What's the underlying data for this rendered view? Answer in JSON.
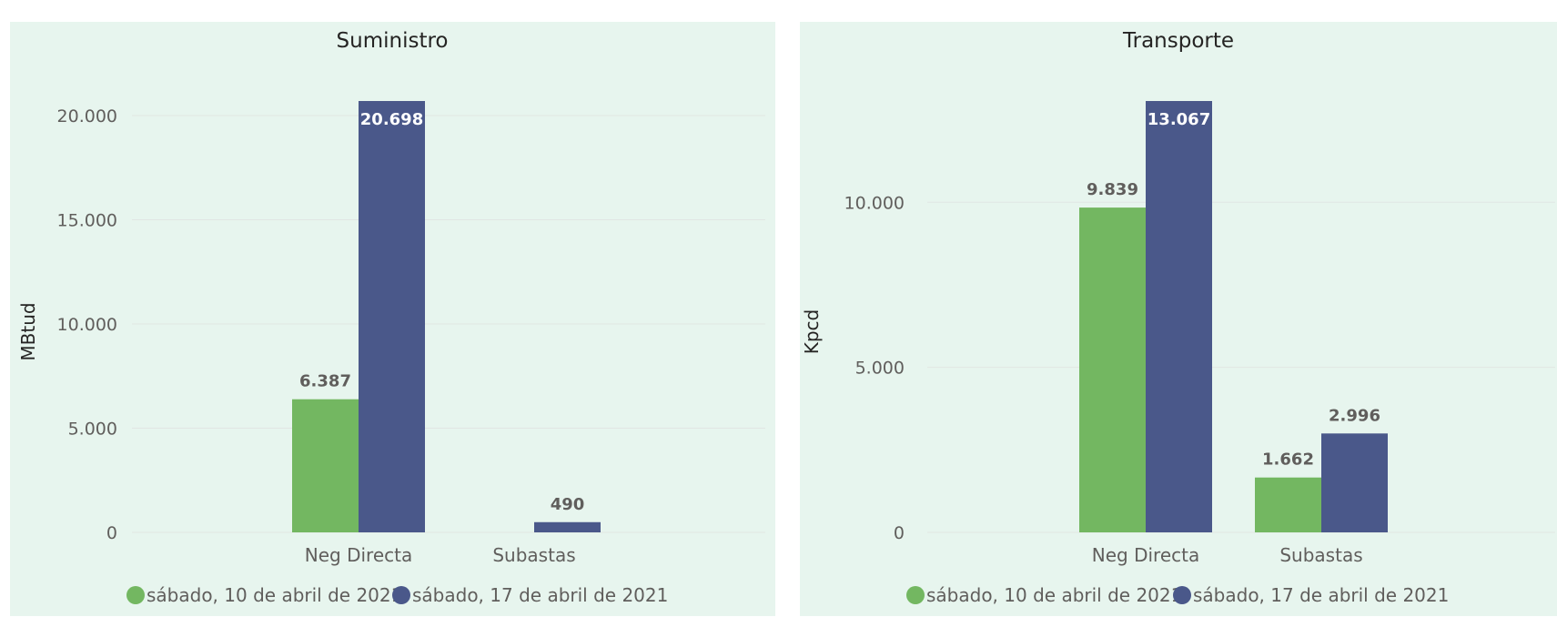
{
  "colors": {
    "series_1": "#73b761",
    "series_2": "#4a588a",
    "panel_background": "#e7f5ee"
  },
  "legend": {
    "items": [
      "sábado, 10 de abril de 2021",
      "sábado, 17 de abril de 2021"
    ]
  },
  "chart_data": [
    {
      "type": "bar",
      "title": "Suministro",
      "ylabel": "MBtud",
      "xlabel": "",
      "categories": [
        "Neg Directa",
        "Subastas"
      ],
      "series": [
        {
          "name": "sábado, 10 de abril de 2021",
          "values": [
            6387,
            null
          ],
          "labels": [
            "6.387",
            ""
          ]
        },
        {
          "name": "sábado, 17 de abril de 2021",
          "values": [
            20698,
            490
          ],
          "labels": [
            "20.698",
            "490"
          ]
        }
      ],
      "ylim": [
        0,
        20698
      ],
      "yticks": [
        0,
        5000,
        10000,
        15000,
        20000
      ],
      "ytick_labels": [
        "0",
        "5.000",
        "10.000",
        "15.000",
        "20.000"
      ],
      "grid": true,
      "legend_position": "bottom"
    },
    {
      "type": "bar",
      "title": "Transporte",
      "ylabel": "Kpcd",
      "xlabel": "",
      "categories": [
        "Neg Directa",
        "Subastas"
      ],
      "series": [
        {
          "name": "sábado, 10 de abril de 2021",
          "values": [
            9839,
            1662
          ],
          "labels": [
            "9.839",
            "1.662"
          ]
        },
        {
          "name": "sábado, 17 de abril de 2021",
          "values": [
            13067,
            2996
          ],
          "labels": [
            "13.067",
            "2.996"
          ]
        }
      ],
      "ylim": [
        0,
        13067
      ],
      "yticks": [
        0,
        5000,
        10000
      ],
      "ytick_labels": [
        "0",
        "5.000",
        "10.000"
      ],
      "grid": true,
      "legend_position": "bottom"
    }
  ]
}
